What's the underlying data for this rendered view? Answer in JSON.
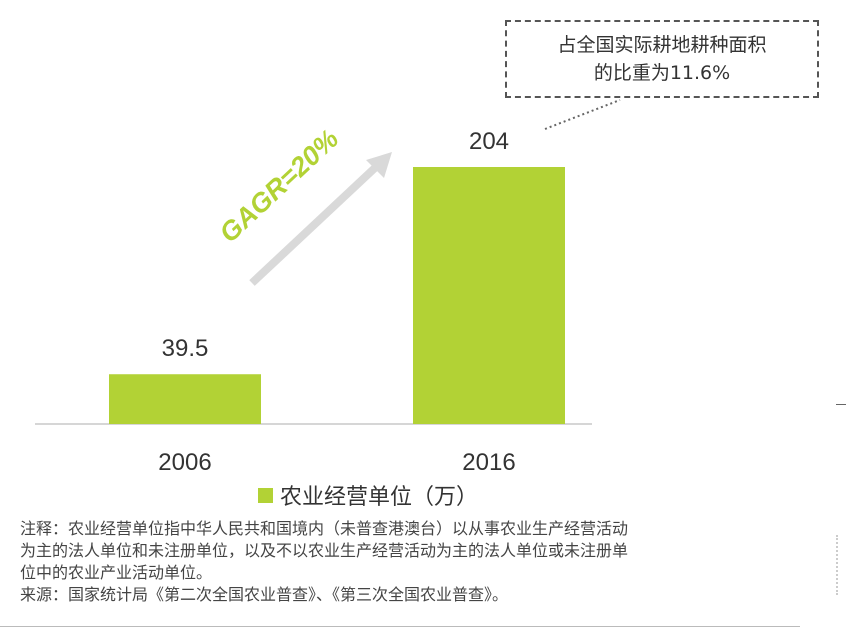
{
  "chart_data": {
    "type": "bar",
    "categories": [
      "2006",
      "2016"
    ],
    "series": [
      {
        "name": "农业经营单位（万）",
        "values": [
          39.5,
          204
        ]
      }
    ],
    "data_labels": [
      "39.5",
      "204"
    ],
    "ylim": [
      0,
      204
    ],
    "grid": false,
    "legend_position": "bottom",
    "bar_color": "#b2d235",
    "annotation_growth": "GAGR=20%",
    "annotation_growth_color": "#b2d235",
    "arrow_color": "#d9d9d9",
    "callout_lines": [
      "占全国实际耕地耕种面积",
      "的比重为11.6%"
    ]
  },
  "legend": {
    "label": "农业经营单位（万）"
  },
  "notes": {
    "line1": "注释：农业经营单位指中华人民共和国境内（未普查港澳台）以从事农业生产经营活动",
    "line2": "为主的法人单位和未注册单位，以及不以农业生产经营活动为主的法人单位或未注册单",
    "line3": "位中的农业产业活动单位。",
    "source": "来源：国家统计局《第二次全国农业普查》、《第三次全国农业普查》。"
  }
}
